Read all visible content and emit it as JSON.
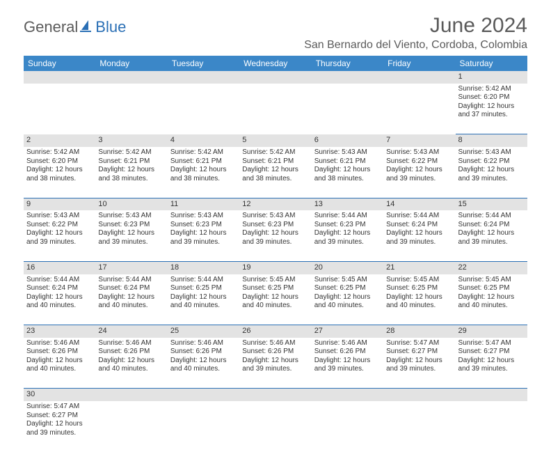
{
  "logo": {
    "general": "General",
    "blue": "Blue"
  },
  "title": "June 2024",
  "location": "San Bernardo del Viento, Cordoba, Colombia",
  "colors": {
    "header_bg": "#3b87c8",
    "header_text": "#ffffff",
    "daynum_bg": "#e3e3e3",
    "cell_border": "#2a6fb5",
    "text": "#333333",
    "logo_gray": "#5a5a5a",
    "logo_blue": "#2a6fb5"
  },
  "weekdays": [
    "Sunday",
    "Monday",
    "Tuesday",
    "Wednesday",
    "Thursday",
    "Friday",
    "Saturday"
  ],
  "weeks": [
    [
      null,
      null,
      null,
      null,
      null,
      null,
      {
        "d": "1",
        "sr": "5:42 AM",
        "ss": "6:20 PM",
        "dl": "12 hours and 37 minutes."
      }
    ],
    [
      {
        "d": "2",
        "sr": "5:42 AM",
        "ss": "6:20 PM",
        "dl": "12 hours and 38 minutes."
      },
      {
        "d": "3",
        "sr": "5:42 AM",
        "ss": "6:21 PM",
        "dl": "12 hours and 38 minutes."
      },
      {
        "d": "4",
        "sr": "5:42 AM",
        "ss": "6:21 PM",
        "dl": "12 hours and 38 minutes."
      },
      {
        "d": "5",
        "sr": "5:42 AM",
        "ss": "6:21 PM",
        "dl": "12 hours and 38 minutes."
      },
      {
        "d": "6",
        "sr": "5:43 AM",
        "ss": "6:21 PM",
        "dl": "12 hours and 38 minutes."
      },
      {
        "d": "7",
        "sr": "5:43 AM",
        "ss": "6:22 PM",
        "dl": "12 hours and 39 minutes."
      },
      {
        "d": "8",
        "sr": "5:43 AM",
        "ss": "6:22 PM",
        "dl": "12 hours and 39 minutes."
      }
    ],
    [
      {
        "d": "9",
        "sr": "5:43 AM",
        "ss": "6:22 PM",
        "dl": "12 hours and 39 minutes."
      },
      {
        "d": "10",
        "sr": "5:43 AM",
        "ss": "6:23 PM",
        "dl": "12 hours and 39 minutes."
      },
      {
        "d": "11",
        "sr": "5:43 AM",
        "ss": "6:23 PM",
        "dl": "12 hours and 39 minutes."
      },
      {
        "d": "12",
        "sr": "5:43 AM",
        "ss": "6:23 PM",
        "dl": "12 hours and 39 minutes."
      },
      {
        "d": "13",
        "sr": "5:44 AM",
        "ss": "6:23 PM",
        "dl": "12 hours and 39 minutes."
      },
      {
        "d": "14",
        "sr": "5:44 AM",
        "ss": "6:24 PM",
        "dl": "12 hours and 39 minutes."
      },
      {
        "d": "15",
        "sr": "5:44 AM",
        "ss": "6:24 PM",
        "dl": "12 hours and 39 minutes."
      }
    ],
    [
      {
        "d": "16",
        "sr": "5:44 AM",
        "ss": "6:24 PM",
        "dl": "12 hours and 40 minutes."
      },
      {
        "d": "17",
        "sr": "5:44 AM",
        "ss": "6:24 PM",
        "dl": "12 hours and 40 minutes."
      },
      {
        "d": "18",
        "sr": "5:44 AM",
        "ss": "6:25 PM",
        "dl": "12 hours and 40 minutes."
      },
      {
        "d": "19",
        "sr": "5:45 AM",
        "ss": "6:25 PM",
        "dl": "12 hours and 40 minutes."
      },
      {
        "d": "20",
        "sr": "5:45 AM",
        "ss": "6:25 PM",
        "dl": "12 hours and 40 minutes."
      },
      {
        "d": "21",
        "sr": "5:45 AM",
        "ss": "6:25 PM",
        "dl": "12 hours and 40 minutes."
      },
      {
        "d": "22",
        "sr": "5:45 AM",
        "ss": "6:25 PM",
        "dl": "12 hours and 40 minutes."
      }
    ],
    [
      {
        "d": "23",
        "sr": "5:46 AM",
        "ss": "6:26 PM",
        "dl": "12 hours and 40 minutes."
      },
      {
        "d": "24",
        "sr": "5:46 AM",
        "ss": "6:26 PM",
        "dl": "12 hours and 40 minutes."
      },
      {
        "d": "25",
        "sr": "5:46 AM",
        "ss": "6:26 PM",
        "dl": "12 hours and 40 minutes."
      },
      {
        "d": "26",
        "sr": "5:46 AM",
        "ss": "6:26 PM",
        "dl": "12 hours and 39 minutes."
      },
      {
        "d": "27",
        "sr": "5:46 AM",
        "ss": "6:26 PM",
        "dl": "12 hours and 39 minutes."
      },
      {
        "d": "28",
        "sr": "5:47 AM",
        "ss": "6:27 PM",
        "dl": "12 hours and 39 minutes."
      },
      {
        "d": "29",
        "sr": "5:47 AM",
        "ss": "6:27 PM",
        "dl": "12 hours and 39 minutes."
      }
    ],
    [
      {
        "d": "30",
        "sr": "5:47 AM",
        "ss": "6:27 PM",
        "dl": "12 hours and 39 minutes."
      },
      null,
      null,
      null,
      null,
      null,
      null
    ]
  ],
  "labels": {
    "sunrise": "Sunrise:",
    "sunset": "Sunset:",
    "daylight": "Daylight:"
  }
}
